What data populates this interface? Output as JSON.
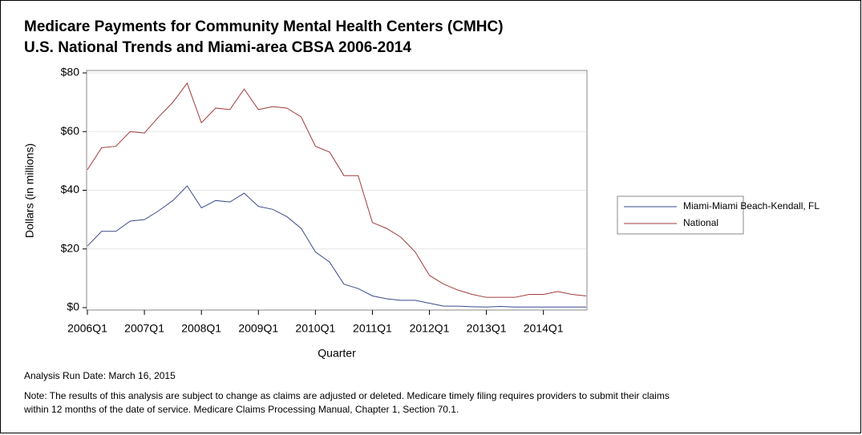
{
  "chart_data": {
    "type": "line",
    "title": [
      "Medicare Payments for Community Mental Health Centers (CMHC)",
      "U.S. National Trends and Miami-area CBSA 2006-2014"
    ],
    "ylabel": "Dollars (in millions)",
    "xlabel": "Quarter",
    "categories": [
      "2006Q1",
      null,
      null,
      null,
      "2007Q1",
      null,
      null,
      null,
      "2008Q1",
      null,
      null,
      null,
      "2009Q1",
      null,
      null,
      null,
      "2010Q1",
      null,
      null,
      null,
      "2011Q1",
      null,
      null,
      null,
      "2012Q1",
      null,
      null,
      null,
      "2013Q1",
      null,
      null,
      null,
      "2014Q1",
      null,
      null,
      null
    ],
    "series": [
      {
        "name": "Miami-Miami Beach-Kendall, FL",
        "color": "#3b4a8c",
        "values": [
          21,
          26,
          26,
          29.5,
          30,
          33,
          36.5,
          41.5,
          34,
          36.5,
          36,
          39,
          34.5,
          33.5,
          31,
          27,
          19,
          15.5,
          8,
          6.5,
          4,
          3,
          2.5,
          2.5,
          1.5,
          0.5,
          0.5,
          0.3,
          0.2,
          0.4,
          0.2,
          0.2,
          0.2,
          0.2,
          0.2,
          0.2
        ]
      },
      {
        "name": "National",
        "color": "#a23b3b",
        "values": [
          47,
          54.5,
          55,
          60,
          59.5,
          65,
          70,
          76.5,
          63,
          68,
          67.5,
          74.5,
          67.5,
          68.5,
          68,
          65,
          55,
          53,
          45,
          45,
          29,
          27,
          24,
          19,
          11,
          8,
          6,
          4.5,
          3.5,
          3.5,
          3.5,
          4.5,
          4.5,
          5.5,
          4.5,
          4
        ]
      }
    ],
    "ylim": [
      0,
      80
    ],
    "yticks": [
      {
        "value": 0,
        "label": "$0"
      },
      {
        "value": 20,
        "label": "$20"
      },
      {
        "value": 40,
        "label": "$40"
      },
      {
        "value": 60,
        "label": "$60"
      },
      {
        "value": 80,
        "label": "$80"
      }
    ],
    "grid": true,
    "legend": "right",
    "footnotes": [
      "Analysis Run Date: March 16, 2015",
      "Note: The results of this analysis are subject to change as claims are adjusted or deleted.  Medicare timely filing requires providers to submit their claims",
      "within 12 months of the date of service.  Medicare Claims Processing Manual, Chapter 1, Section 70.1."
    ]
  }
}
